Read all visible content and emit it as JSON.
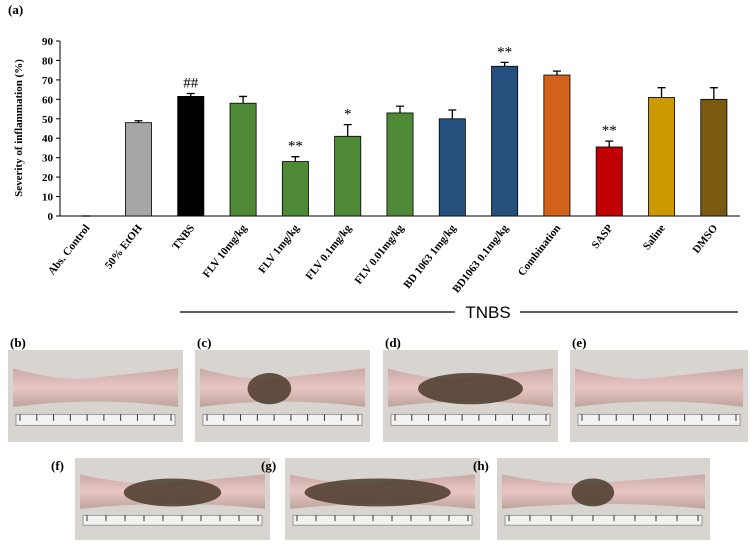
{
  "chart_data": {
    "type": "bar",
    "panel_label": "(a)",
    "ylabel": "Severity of inflammation (%)",
    "categories": [
      "Abs. Control",
      "50% EtOH",
      "TNBS",
      "FLV 10mg/kg",
      "FLV 1mg/kg",
      "FLV 0.1mg/kg",
      "FLV 0.01mg/kg",
      "BD 1063 1mg/kg",
      "BD1063 0.1mg/kg",
      "Combination",
      "SASP",
      "Saline",
      "DMSO"
    ],
    "values": [
      0,
      48,
      61.5,
      58,
      28,
      41,
      53,
      50,
      77,
      72.5,
      35.5,
      61,
      60
    ],
    "errors": [
      0,
      1,
      1.5,
      3.5,
      2.5,
      6,
      3.5,
      4.5,
      2,
      2,
      3,
      5,
      6
    ],
    "colors": [
      "#999999",
      "#a6a6a6",
      "#000000",
      "#4e8a35",
      "#4e8a35",
      "#4e8a35",
      "#4e8a35",
      "#25507e",
      "#25507e",
      "#d2621a",
      "#c00000",
      "#cc9900",
      "#7a5a10"
    ],
    "annotations": [
      null,
      null,
      "##",
      null,
      "**",
      "*",
      null,
      null,
      "**",
      null,
      "**",
      null,
      null
    ],
    "ylim": [
      0,
      90
    ],
    "yticks": [
      0,
      10,
      20,
      30,
      40,
      50,
      60,
      70,
      80,
      90
    ],
    "group_label": "TNBS"
  },
  "photo_panels": [
    "(b)",
    "(c)",
    "(d)",
    "(e)",
    "(f)",
    "(g)",
    "(h)"
  ]
}
